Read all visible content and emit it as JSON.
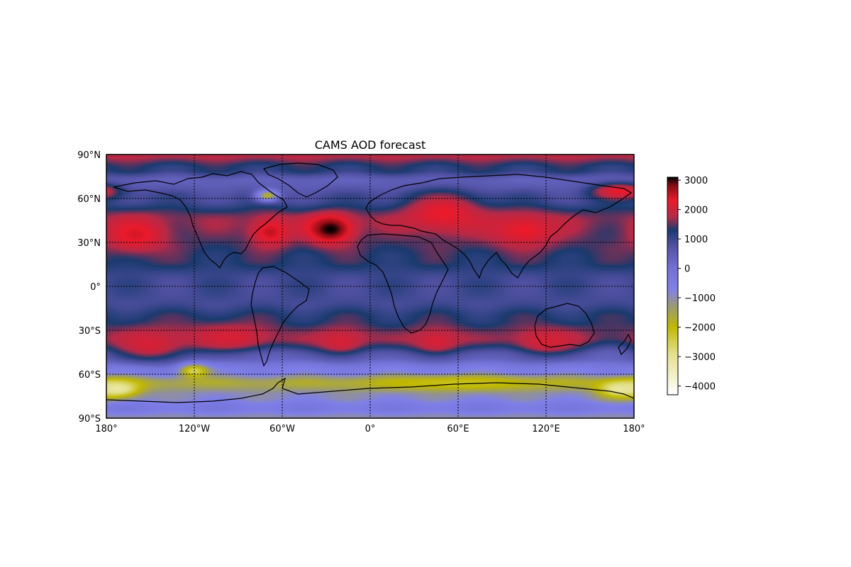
{
  "chart_data": {
    "type": "heatmap",
    "title": "CAMS AOD forecast",
    "projection": "PlateCarree",
    "xlim": [
      -180,
      180
    ],
    "ylim": [
      -90,
      90
    ],
    "grid": true,
    "x_ticks": [
      {
        "value": -180,
        "label": "180°"
      },
      {
        "value": -120,
        "label": "120°W"
      },
      {
        "value": -60,
        "label": "60°W"
      },
      {
        "value": 0,
        "label": "0°"
      },
      {
        "value": 60,
        "label": "60°E"
      },
      {
        "value": 120,
        "label": "120°E"
      },
      {
        "value": 180,
        "label": "180°"
      }
    ],
    "y_ticks": [
      {
        "value": 90,
        "label": "90°N"
      },
      {
        "value": 60,
        "label": "60°N"
      },
      {
        "value": 30,
        "label": "30°N"
      },
      {
        "value": 0,
        "label": "0°"
      },
      {
        "value": -30,
        "label": "30°S"
      },
      {
        "value": -60,
        "label": "60°S"
      },
      {
        "value": -90,
        "label": "90°S"
      }
    ],
    "colorbar": {
      "min": -4300,
      "max": 3100,
      "ticks": [
        3000,
        2000,
        1000,
        0,
        -1000,
        -2000,
        -3000,
        -4000
      ],
      "tick_labels": [
        "3000",
        "2000",
        "1000",
        "0",
        "−1000",
        "−2000",
        "−3000",
        "−4000"
      ],
      "colormap_stops": [
        {
          "value": -4300,
          "color": "#ffffff"
        },
        {
          "value": -2900,
          "color": "#e3e08a"
        },
        {
          "value": -2000,
          "color": "#c0b800"
        },
        {
          "value": -1300,
          "color": "#9a9a72"
        },
        {
          "value": -700,
          "color": "#7f7fe9"
        },
        {
          "value": 0,
          "color": "#7272d6"
        },
        {
          "value": 800,
          "color": "#4f4fa0"
        },
        {
          "value": 1300,
          "color": "#1a3a6e"
        },
        {
          "value": 1750,
          "color": "#b42a48"
        },
        {
          "value": 2300,
          "color": "#ea1a2b"
        },
        {
          "value": 2800,
          "color": "#8a0c14"
        },
        {
          "value": 3100,
          "color": "#000000"
        }
      ]
    },
    "field_description_values": {
      "background_band_values": [
        {
          "lat": 90,
          "value": 1800
        },
        {
          "lat": 80,
          "value": 1200
        },
        {
          "lat": 72,
          "value": 400
        },
        {
          "lat": 60,
          "value": 900
        },
        {
          "lat": 45,
          "value": 1600
        },
        {
          "lat": 30,
          "value": 1400
        },
        {
          "lat": 18,
          "value": 1300
        },
        {
          "lat": 5,
          "value": 950
        },
        {
          "lat": -10,
          "value": 900
        },
        {
          "lat": -22,
          "value": 1250
        },
        {
          "lat": -35,
          "value": 1500
        },
        {
          "lat": -48,
          "value": 300
        },
        {
          "lat": -58,
          "value": -600
        },
        {
          "lat": -66,
          "value": -1600
        },
        {
          "lat": -75,
          "value": -900
        },
        {
          "lat": -83,
          "value": -400
        },
        {
          "lat": -90,
          "value": -1000
        }
      ],
      "features": [
        {
          "lon": -27,
          "lat": 39,
          "value": 3100,
          "lon_radius": 16,
          "lat_radius": 10
        },
        {
          "lon": -68,
          "lat": 37,
          "value": 2500,
          "lon_radius": 14,
          "lat_radius": 10
        },
        {
          "lon": -160,
          "lat": 35,
          "value": 2400,
          "lon_radius": 22,
          "lat_radius": 12
        },
        {
          "lon": 50,
          "lat": 50,
          "value": 2300,
          "lon_radius": 28,
          "lat_radius": 14
        },
        {
          "lon": 105,
          "lat": 38,
          "value": 2300,
          "lon_radius": 25,
          "lat_radius": 12
        },
        {
          "lon": 170,
          "lat": 65,
          "value": 2300,
          "lon_radius": 20,
          "lat_radius": 6
        },
        {
          "lon": -150,
          "lat": -40,
          "value": 2100,
          "lon_radius": 28,
          "lat_radius": 12
        },
        {
          "lon": -95,
          "lat": -35,
          "value": 2100,
          "lon_radius": 30,
          "lat_radius": 10
        },
        {
          "lon": -20,
          "lat": -38,
          "value": 2100,
          "lon_radius": 20,
          "lat_radius": 10
        },
        {
          "lon": 45,
          "lat": -38,
          "value": 2100,
          "lon_radius": 20,
          "lat_radius": 10
        },
        {
          "lon": 120,
          "lat": -38,
          "value": 2100,
          "lon_radius": 25,
          "lat_radius": 10
        },
        {
          "lon": -120,
          "lat": -58,
          "value": -2600,
          "lon_radius": 10,
          "lat_radius": 5
        },
        {
          "lon": -172,
          "lat": -70,
          "value": -3200,
          "lon_radius": 15,
          "lat_radius": 6
        },
        {
          "lon": 170,
          "lat": -70,
          "value": -3200,
          "lon_radius": 15,
          "lat_radius": 6
        },
        {
          "lon": 60,
          "lat": -66,
          "value": -2200,
          "lon_radius": 60,
          "lat_radius": 5
        },
        {
          "lon": -70,
          "lat": 62,
          "value": -1800,
          "lon_radius": 8,
          "lat_radius": 4
        }
      ]
    }
  }
}
